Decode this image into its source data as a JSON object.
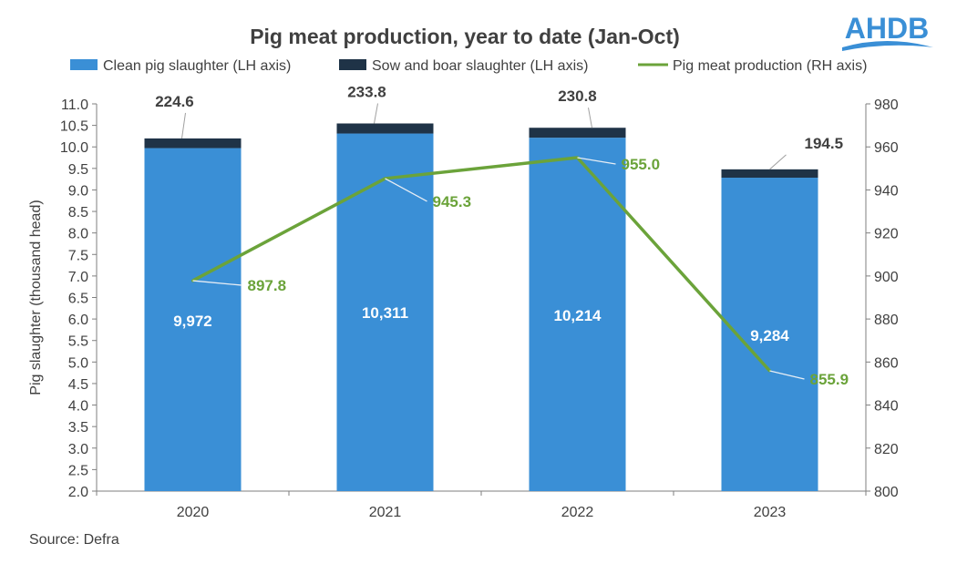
{
  "logo": {
    "text": "AHDB",
    "color": "#3a8fd6"
  },
  "source": "Source: Defra",
  "colors": {
    "clean": "#3a8fd6",
    "sow": "#1f3347",
    "line": "#6ba33a",
    "axis": "#7f7f7f",
    "text": "#404040",
    "bar_label": "#ffffff"
  },
  "chart_data": {
    "type": "bar",
    "title": "Pig meat production, year to date (Jan-Oct)",
    "categories": [
      "2020",
      "2021",
      "2022",
      "2023"
    ],
    "series": [
      {
        "name": "Clean pig slaughter (LH axis)",
        "kind": "bar",
        "axis": "left",
        "values": [
          9.972,
          10.311,
          10.214,
          9.284
        ],
        "labels": [
          "9,972",
          "10,311",
          "10,214",
          "9,284"
        ]
      },
      {
        "name": "Sow and boar slaughter (LH axis)",
        "kind": "bar",
        "axis": "left",
        "values": [
          0.2246,
          0.2338,
          0.2308,
          0.1945
        ],
        "labels": [
          "224.6",
          "233.8",
          "230.8",
          "194.5"
        ]
      },
      {
        "name": "Pig meat production (RH axis)",
        "kind": "line",
        "axis": "right",
        "values": [
          897.8,
          945.3,
          955.0,
          855.9
        ],
        "labels": [
          "897.8",
          "945.3",
          "955.0",
          "855.9"
        ]
      }
    ],
    "ylabel": "Pig slaughter (thousand head)",
    "ylim": [
      2.0,
      11.0
    ],
    "yticks": [
      "2.0",
      "2.5",
      "3.0",
      "3.5",
      "4.0",
      "4.5",
      "5.0",
      "5.5",
      "6.0",
      "6.5",
      "7.0",
      "7.5",
      "8.0",
      "8.5",
      "9.0",
      "9.5",
      "10.0",
      "10.5",
      "11.0"
    ],
    "y2lim": [
      800,
      980
    ],
    "y2ticks": [
      "800",
      "820",
      "840",
      "860",
      "880",
      "900",
      "920",
      "940",
      "960",
      "980"
    ],
    "legend_position": "top",
    "grid": false
  }
}
